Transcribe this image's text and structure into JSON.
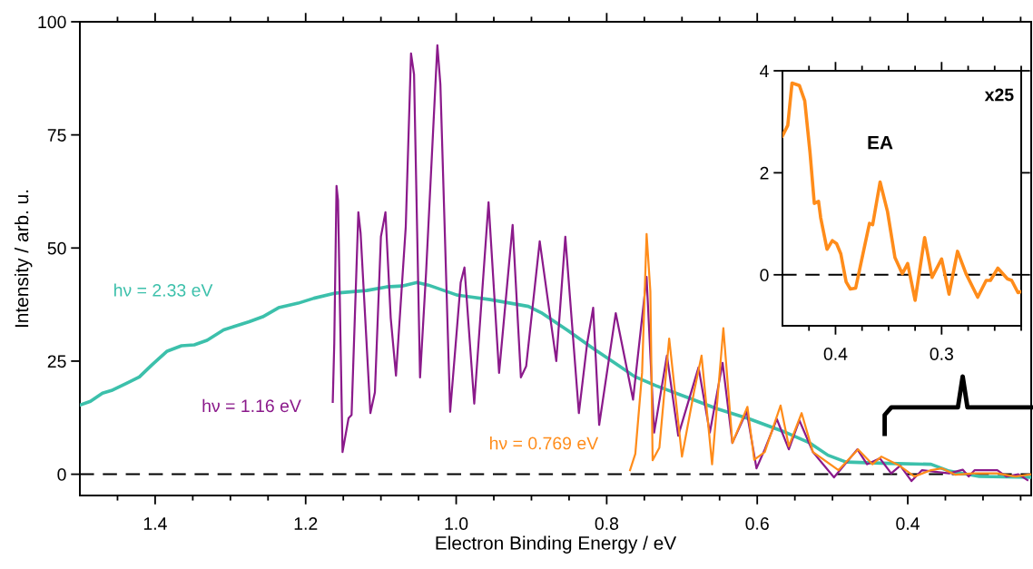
{
  "chart_data": [
    {
      "type": "line",
      "xlabel": "Electron Binding Energy / eV",
      "ylabel": "Intensity / arb. u.",
      "xlim": [
        1.5,
        0.236
      ],
      "ylim": [
        -4.7,
        100
      ],
      "xticks": [
        {
          "value": 1.45,
          "label": null
        },
        1.4,
        {
          "value": 1.35,
          "label": null
        },
        {
          "value": 1.3,
          "label": null
        },
        {
          "value": 1.25,
          "label": null
        },
        1.2,
        {
          "value": 1.15,
          "label": null
        },
        {
          "value": 1.1,
          "label": null
        },
        {
          "value": 1.05,
          "label": null
        },
        {
          "value": 1.0,
          "label": "1.0"
        },
        {
          "value": 0.95,
          "label": null
        },
        {
          "value": 0.9,
          "label": null
        },
        {
          "value": 0.85,
          "label": null
        },
        0.8,
        {
          "value": 0.75,
          "label": null
        },
        {
          "value": 0.7,
          "label": null
        },
        {
          "value": 0.65,
          "label": null
        },
        0.6,
        {
          "value": 0.55,
          "label": null
        },
        {
          "value": 0.5,
          "label": null
        },
        {
          "value": 0.45,
          "label": null
        },
        0.4,
        {
          "value": 0.35,
          "label": null
        },
        {
          "value": 0.3,
          "label": null
        },
        {
          "value": 0.25,
          "label": null
        }
      ],
      "yticks": [
        0,
        25,
        50,
        75,
        100
      ],
      "grid": false,
      "legend": false,
      "line_style": "solid",
      "ref_lines": [
        {
          "axis": "y",
          "value": 0,
          "color": "#000000",
          "line_style": "dashed"
        }
      ],
      "series": [
        {
          "name": "hν = 2.33 eV",
          "color": "#3cc0ab",
          "x": [
            1.5,
            1.486,
            1.47,
            1.458,
            1.438,
            1.421,
            1.404,
            1.384,
            1.365,
            1.348,
            1.331,
            1.309,
            1.296,
            1.275,
            1.257,
            1.236,
            1.21,
            1.189,
            1.162,
            1.119,
            1.093,
            1.072,
            1.052,
            1.037,
            0.999,
            0.955,
            0.904,
            0.887,
            0.852,
            0.818,
            0.783,
            0.763,
            0.735,
            0.687,
            0.654,
            0.61,
            0.566,
            0.53,
            0.506,
            0.482,
            0.425,
            0.369,
            0.345,
            0.305,
            0.236
          ],
          "values": [
            15.3,
            16.1,
            17.9,
            18.5,
            20.1,
            21.5,
            24.2,
            27.2,
            28.4,
            28.6,
            29.6,
            31.9,
            32.6,
            33.7,
            34.8,
            36.8,
            37.8,
            38.9,
            40.0,
            40.6,
            41.4,
            41.6,
            42.4,
            41.8,
            39.6,
            38.6,
            37.1,
            35.7,
            31.8,
            27.8,
            23.9,
            21.6,
            19.6,
            16.6,
            14.5,
            12.2,
            9.5,
            6.9,
            4.2,
            2.7,
            2.4,
            2.2,
            0.7,
            -0.5,
            -0.7
          ]
        },
        {
          "name": "hν = 1.16 eV",
          "color": "#8b1a8b",
          "x": [
            1.164,
            1.162,
            1.159,
            1.157,
            1.151,
            1.143,
            1.139,
            1.13,
            1.127,
            1.114,
            1.108,
            1.1,
            1.094,
            1.087,
            1.08,
            1.067,
            1.06,
            1.056,
            1.048,
            1.04,
            1.025,
            1.021,
            1.008,
            0.994,
            0.989,
            0.976,
            0.957,
            0.943,
            0.925,
            0.914,
            0.907,
            0.889,
            0.867,
            0.855,
            0.837,
            0.826,
            0.818,
            0.81,
            0.788,
            0.765,
            0.747,
            0.737,
            0.72,
            0.705,
            0.678,
            0.663,
            0.646,
            0.633,
            0.614,
            0.601,
            0.59,
            0.574,
            0.558,
            0.544,
            0.526,
            0.498,
            0.467,
            0.454,
            0.437,
            0.422,
            0.41,
            0.395,
            0.381,
            0.361,
            0.345,
            0.327,
            0.319,
            0.311,
            0.281,
            0.269,
            0.253,
            0.241
          ],
          "values": [
            16.0,
            28.9,
            63.7,
            60.5,
            4.9,
            12.4,
            13.1,
            57.9,
            53.3,
            13.5,
            18.1,
            52.5,
            57.9,
            34.6,
            21.8,
            54.7,
            93.0,
            88.4,
            21.4,
            44.6,
            94.8,
            86.2,
            13.8,
            42.4,
            45.7,
            15.6,
            60.1,
            22.4,
            55.1,
            21.4,
            23.9,
            51.5,
            25.0,
            52.5,
            13.5,
            28.9,
            36.8,
            10.9,
            35.6,
            16.5,
            43.6,
            9.2,
            26.2,
            8.5,
            23.6,
            9.2,
            24.6,
            6.9,
            13.9,
            1.3,
            5.5,
            12.2,
            5.5,
            11.9,
            4.9,
            -0.7,
            5.5,
            2.2,
            3.5,
            0.2,
            1.9,
            -1.5,
            0.9,
            0.5,
            0.2,
            1.0,
            -0.5,
            0.9,
            0.9,
            -0.5,
            0.0,
            -1.3
          ]
        },
        {
          "name": "hν = 0.769 eV",
          "color": "#ff8c1a",
          "x": [
            0.769,
            0.762,
            0.753,
            0.747,
            0.742,
            0.739,
            0.73,
            0.717,
            0.7,
            0.684,
            0.674,
            0.66,
            0.645,
            0.633,
            0.613,
            0.604,
            0.59,
            0.569,
            0.558,
            0.541,
            0.526,
            0.492,
            0.466,
            0.447,
            0.435,
            0.411,
            0.391,
            0.369,
            0.355,
            0.337,
            0.313,
            0.281,
            0.257,
            0.236
          ],
          "values": [
            0.9,
            4.5,
            22.4,
            53.1,
            40.4,
            3.1,
            5.9,
            30.0,
            3.9,
            18.2,
            26.2,
            2.2,
            32.3,
            6.9,
            14.9,
            3.2,
            4.9,
            15.2,
            6.2,
            13.5,
            4.9,
            0.9,
            5.5,
            2.2,
            3.9,
            1.9,
            -0.5,
            0.9,
            1.3,
            -0.1,
            0.2,
            0.2,
            -0.5,
            0.0
          ]
        }
      ]
    },
    {
      "type": "line",
      "xlim": [
        0.45,
        0.225
      ],
      "ylim": [
        -1,
        4
      ],
      "xticks": [
        {
          "value": 0.425,
          "label": null
        },
        0.4,
        {
          "value": 0.375,
          "label": null
        },
        {
          "value": 0.35,
          "label": null
        },
        {
          "value": 0.325,
          "label": null
        },
        0.3,
        {
          "value": 0.275,
          "label": null
        },
        {
          "value": 0.25,
          "label": null
        },
        {
          "value": 0.225,
          "label": null
        }
      ],
      "yticks": [
        0,
        2,
        4
      ],
      "grid": false,
      "legend": false,
      "line_style": "solid",
      "ref_lines": [
        {
          "axis": "y",
          "value": 0,
          "color": "#000000",
          "line_style": "dashed"
        }
      ],
      "annotations": [
        "x25",
        {
          "text": "EA",
          "x": 0.358,
          "y": 1.82
        }
      ],
      "series": [
        {
          "color": "#ff8c1a",
          "x": [
            0.45,
            0.445,
            0.441,
            0.434,
            0.429,
            0.424,
            0.42,
            0.416,
            0.414,
            0.408,
            0.403,
            0.399,
            0.395,
            0.39,
            0.386,
            0.381,
            0.368,
            0.365,
            0.358,
            0.351,
            0.344,
            0.337,
            0.332,
            0.325,
            0.316,
            0.309,
            0.3,
            0.293,
            0.285,
            0.277,
            0.266,
            0.258,
            0.254,
            0.247,
            0.238,
            0.234,
            0.228,
            0.225
          ],
          "values": [
            2.72,
            2.93,
            3.76,
            3.71,
            3.41,
            2.39,
            1.4,
            1.44,
            1.12,
            0.5,
            0.67,
            0.61,
            0.41,
            -0.14,
            -0.28,
            -0.26,
            1.01,
            0.98,
            1.82,
            1.24,
            0.34,
            0.02,
            0.22,
            -0.5,
            0.73,
            -0.05,
            0.31,
            -0.38,
            0.46,
            0.02,
            -0.44,
            -0.11,
            -0.11,
            0.13,
            -0.08,
            -0.11,
            -0.35,
            -0.33
          ]
        }
      ]
    }
  ]
}
